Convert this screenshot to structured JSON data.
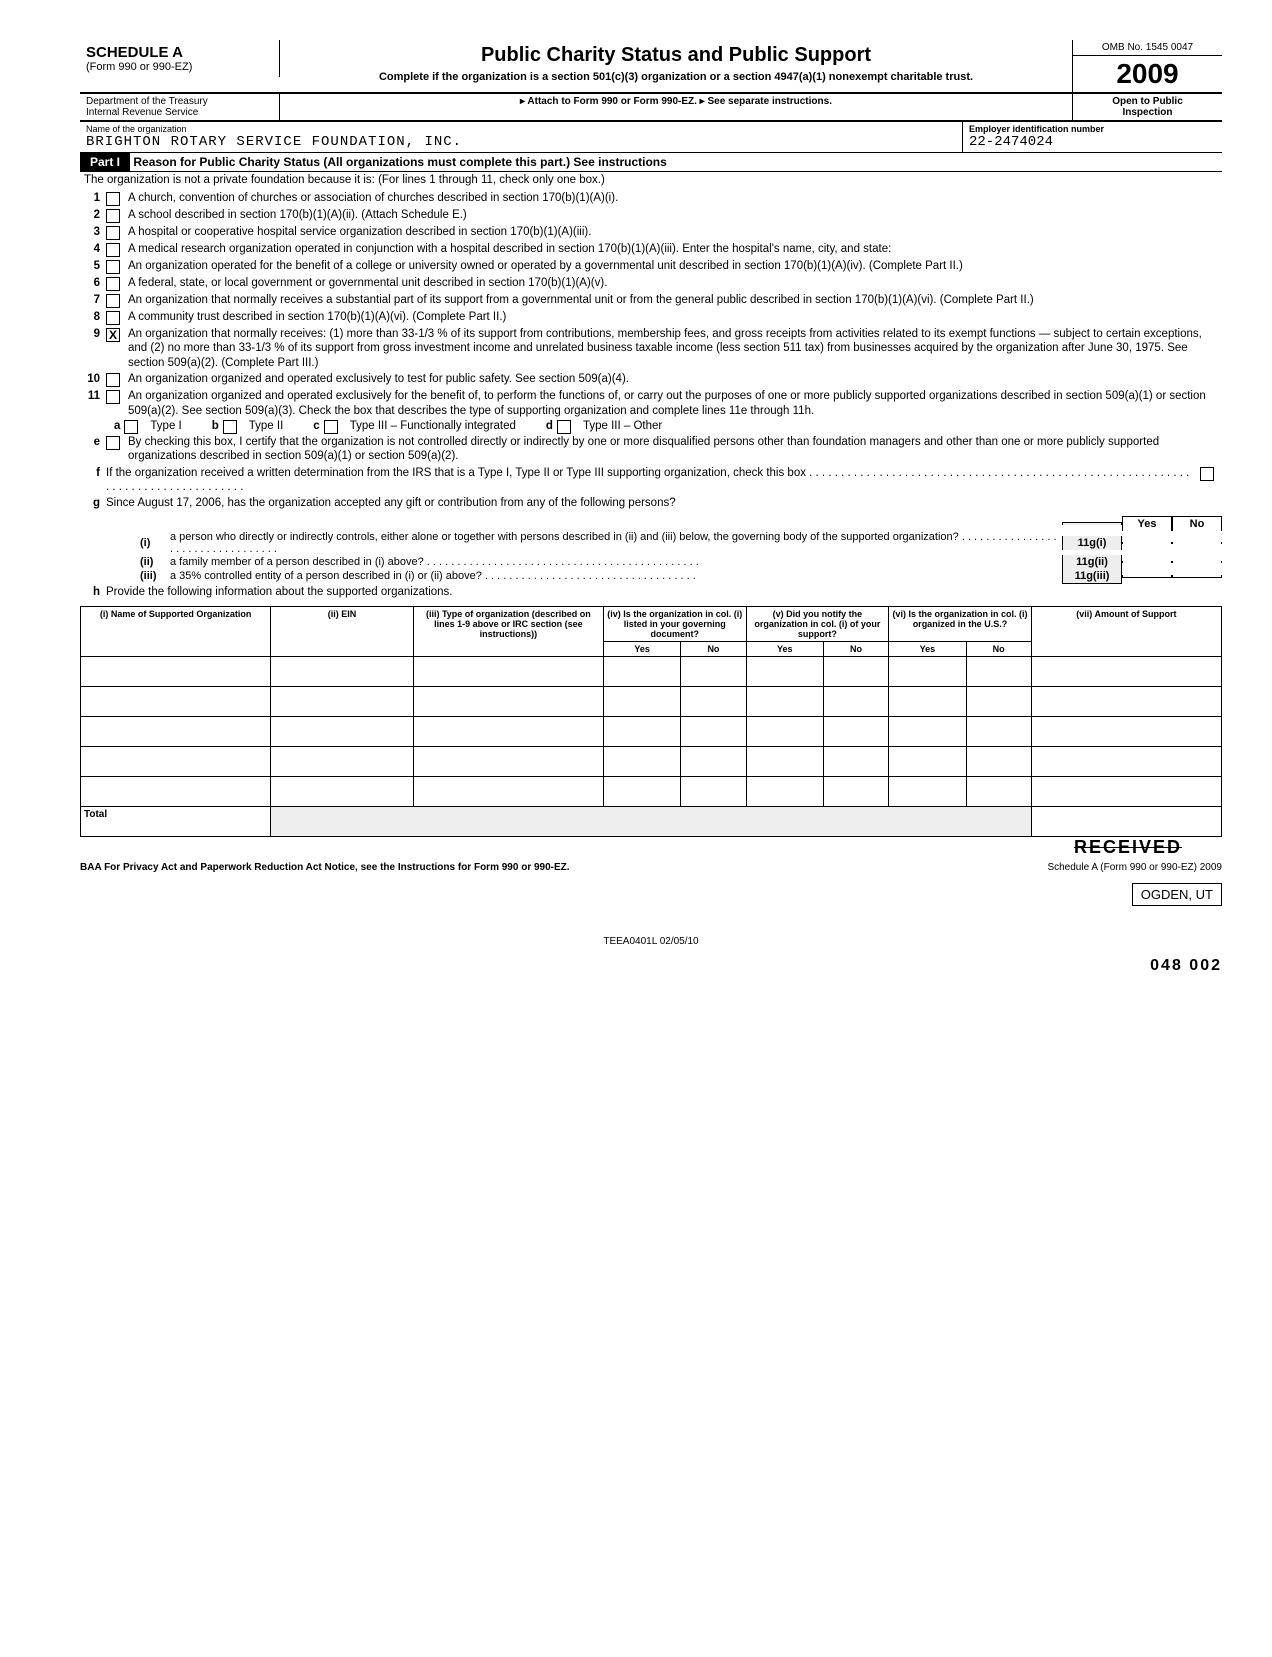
{
  "header": {
    "schedule": "SCHEDULE A",
    "form_ref": "(Form 990 or 990-EZ)",
    "title": "Public Charity Status and Public Support",
    "subtitle1": "Complete if the organization is a section 501(c)(3) organization or a section 4947(a)(1) nonexempt charitable trust.",
    "omb": "OMB No. 1545 0047",
    "year": "2009",
    "dept": "Department of the Treasury",
    "irs": "Internal Revenue Service",
    "attach": "▸ Attach to Form 990 or Form 990-EZ. ▸ See separate instructions.",
    "open": "Open to Public",
    "inspection": "Inspection"
  },
  "org": {
    "name_label": "Name of the organization",
    "name": "BRIGHTON ROTARY SERVICE FOUNDATION, INC.",
    "ein_label": "Employer identification number",
    "ein": "22-2474024"
  },
  "part1": {
    "label": "Part I",
    "title": "Reason for Public Charity Status (All organizations must complete this part.) See instructions",
    "intro": "The organization is not a private foundation because it is: (For lines 1 through 11, check only one box.)",
    "lines": [
      {
        "n": "1",
        "txt": "A church, convention of churches or association of churches described in section 170(b)(1)(A)(i)."
      },
      {
        "n": "2",
        "txt": "A school described in section 170(b)(1)(A)(ii). (Attach Schedule E.)"
      },
      {
        "n": "3",
        "txt": "A hospital or cooperative hospital service organization described in section 170(b)(1)(A)(iii)."
      },
      {
        "n": "4",
        "txt": "A medical research organization operated in conjunction with a hospital described in section 170(b)(1)(A)(iii). Enter the hospital's name, city, and state:"
      },
      {
        "n": "5",
        "txt": "An organization operated for the benefit of a college or university owned or operated by a governmental unit described in section 170(b)(1)(A)(iv). (Complete Part II.)"
      },
      {
        "n": "6",
        "txt": "A federal, state, or local government or governmental unit described in section 170(b)(1)(A)(v)."
      },
      {
        "n": "7",
        "txt": "An organization that normally receives a substantial part of its support from a governmental unit or from the general public described in section 170(b)(1)(A)(vi). (Complete Part II.)"
      },
      {
        "n": "8",
        "txt": "A community trust described in section 170(b)(1)(A)(vi). (Complete Part II.)"
      },
      {
        "n": "9",
        "chk": "X",
        "txt": "An organization that normally receives: (1) more than 33-1/3 % of its support from contributions, membership fees, and gross receipts from activities related to its exempt functions — subject to certain exceptions, and (2) no more than 33-1/3 % of its support from gross investment income and unrelated business taxable income (less section 511 tax) from businesses acquired by the organization after June 30, 1975. See section 509(a)(2). (Complete Part III.)"
      },
      {
        "n": "10",
        "txt": "An organization organized and operated exclusively to test for public safety. See section 509(a)(4)."
      },
      {
        "n": "11",
        "txt": "An organization organized and operated exclusively for the benefit of, to perform the functions of, or carry out the purposes of one or more publicly supported organizations described in section 509(a)(1) or section 509(a)(2). See section 509(a)(3). Check the box that describes the type of supporting organization and complete lines 11e through 11h."
      }
    ],
    "sub11": {
      "a": "Type I",
      "b": "Type II",
      "c": "Type III – Functionally integrated",
      "d": "Type III – Other"
    },
    "e": "By checking this box, I certify that the organization is not controlled directly or indirectly by one or more disqualified persons other than foundation managers and other than one or more publicly supported organizations described in section 509(a)(1) or section 509(a)(2).",
    "f": "If the organization received a written determination from the IRS that is a Type I, Type II or Type III supporting organization, check this box . . . . . . . . . . . . . . . . . . . . . . . . . . . . . . . . . . . . . . . . . . . . . . . . . . . . . . . . . . . . . . . . . . . . . . . . . . . . . . . . . .",
    "g": "Since August 17, 2006, has the organization accepted any gift or contribution from any of the following persons?",
    "g_rows": [
      {
        "n": "(i)",
        "txt": "a person who directly or indirectly controls, either alone or together with persons described in (ii) and (iii) below, the governing body of the supported organization? . . . . . . . . . . . . . . . . . . . . . . . . . . . . . . . . . .",
        "ref": "11g(i)"
      },
      {
        "n": "(ii)",
        "txt": "a family member of a person described in (i) above? . . . . . . . . . . . . . . . . . . . . . . . . . . . . . . . . . . . . . . . . . . . . .",
        "ref": "11g(ii)"
      },
      {
        "n": "(iii)",
        "txt": "a 35% controlled entity of a person described in (i) or (ii) above? . . . . . . . . . . . . . . . . . . . . . . . . . . . . . . . . . . .",
        "ref": "11g(iii)"
      }
    ],
    "h": "Provide the following information about the supported organizations.",
    "table_headers": [
      "(i) Name of Supported Organization",
      "(ii) EIN",
      "(iii) Type of organization (described on lines 1-9 above or IRC section (see instructions))",
      "(iv) Is the organization in col. (i) listed in your governing document?",
      "(v) Did you notify the organization in col. (i) of your support?",
      "(vi) Is the organization in col. (i) organized in the U.S.?",
      "(vii) Amount of Support"
    ],
    "yes": "Yes",
    "no": "No",
    "total": "Total"
  },
  "footer": {
    "priv": "BAA For Privacy Act and Paperwork Reduction Act Notice, see the Instructions for Form 990 or 990-EZ.",
    "sched": "Schedule A (Form 990 or 990-EZ) 2009",
    "received": "RECEIVED",
    "ogden": "OGDEN, UT",
    "teea": "TEEA0401L  02/05/10",
    "corner": "048 002"
  }
}
